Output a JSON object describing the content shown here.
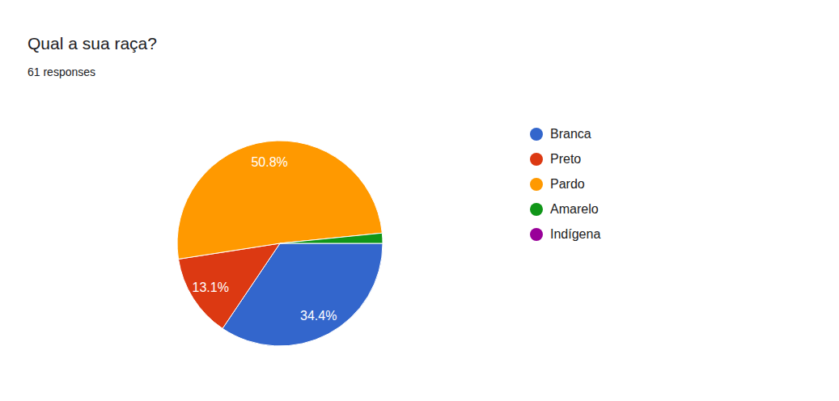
{
  "chart_data": {
    "type": "pie",
    "title": "Qual a sua raça?",
    "subtitle": "61 responses",
    "categories": [
      "Branca",
      "Preto",
      "Pardo",
      "Amarelo",
      "Indígena"
    ],
    "values": [
      34.4,
      13.1,
      50.8,
      1.6,
      0
    ],
    "value_labels": [
      "34.4%",
      "13.1%",
      "50.8%",
      null,
      null
    ],
    "colors": [
      "#3366cc",
      "#dc3912",
      "#ff9900",
      "#109618",
      "#990099"
    ],
    "data_labels": true,
    "legend": "right"
  }
}
